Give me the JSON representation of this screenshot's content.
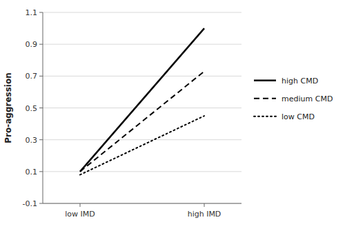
{
  "chart_data": {
    "type": "line",
    "categories": [
      "low IMD",
      "high IMD"
    ],
    "series": [
      {
        "name": "high CMD",
        "color": "#000000",
        "line_style": "solid",
        "values": [
          0.1,
          1.0
        ]
      },
      {
        "name": "medium CMD",
        "color": "#000000",
        "line_style": "dashed",
        "values": [
          0.1,
          0.73
        ]
      },
      {
        "name": "low CMD",
        "color": "#000000",
        "line_style": "dotted",
        "values": [
          0.08,
          0.45
        ]
      }
    ],
    "y_label": "Pro-aggression",
    "ylim": [
      -0.1,
      1.1
    ],
    "yticks": [
      -0.1,
      0.1,
      0.3,
      0.5,
      0.7,
      0.9,
      1.1
    ],
    "grid": true,
    "legend": "right"
  }
}
